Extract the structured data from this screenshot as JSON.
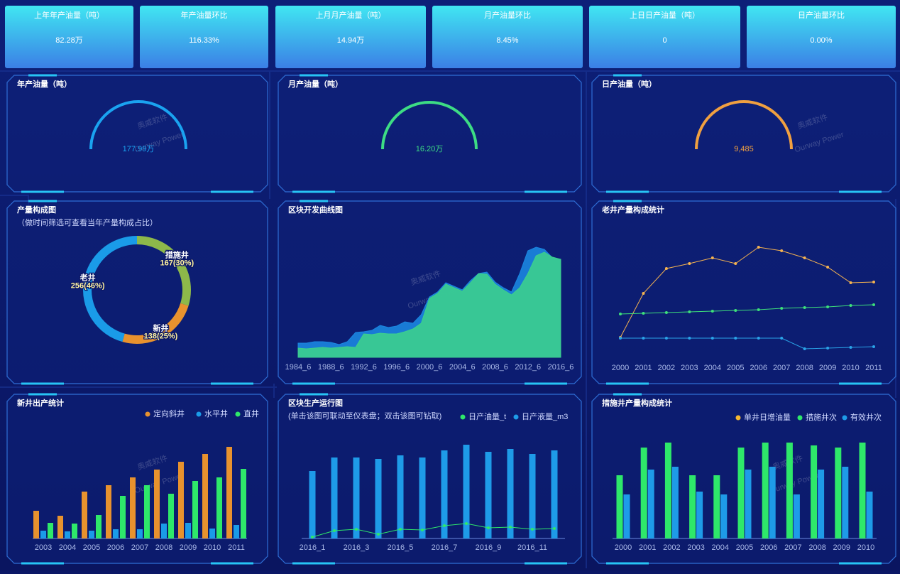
{
  "kpi_cards": [
    {
      "label": "上年年产油量（吨）",
      "value": "82.28万"
    },
    {
      "label": "年产油量环比",
      "value": "116.33%"
    },
    {
      "label": "上月月产油量（吨）",
      "value": "14.94万"
    },
    {
      "label": "月产油量环比",
      "value": "8.45%"
    },
    {
      "label": "上日日产油量（吨）",
      "value": "0"
    },
    {
      "label": "日产油量环比",
      "value": "0.00%"
    }
  ],
  "watermark": {
    "cn": "奥威软件",
    "en": "Ourway Power"
  },
  "chart_data": [
    {
      "type": "gauge",
      "title": "年产油量（吨）",
      "value": 177.99,
      "value_label": "177.99万",
      "color": "#1aa3f0"
    },
    {
      "type": "gauge",
      "title": "月产油量（吨）",
      "value": 16.2,
      "value_label": "16.20万",
      "color": "#3ddc84"
    },
    {
      "type": "gauge",
      "title": "日产油量（吨）",
      "value": 9485,
      "value_label": "9,485",
      "color": "#f0a040"
    },
    {
      "type": "pie",
      "title": "产量构成图",
      "subtitle": "（做时间筛选可查看当年产量构成占比）",
      "categories": [
        "措施井",
        "新井",
        "老井"
      ],
      "values": [
        167,
        138,
        256
      ],
      "value_labels": [
        "167(30%)",
        "138(25%)",
        "256(46%)"
      ],
      "colors": [
        "#8db84a",
        "#e8922e",
        "#1a9be8"
      ]
    },
    {
      "type": "area",
      "title": "区块开发曲线图",
      "categories": [
        "1984_6",
        null,
        null,
        null,
        "1988_6",
        null,
        null,
        null,
        "1992_6",
        null,
        null,
        null,
        "1996_6",
        null,
        null,
        null,
        "2000_6",
        null,
        null,
        null,
        "2004_6",
        null,
        null,
        null,
        "2008_6",
        null,
        null,
        null,
        "2012_6",
        null,
        null,
        null,
        "2016_6"
      ],
      "series": [
        {
          "color": "#1b86e0",
          "values": [
            20,
            20,
            22,
            22,
            21,
            18,
            22,
            35,
            36,
            38,
            45,
            42,
            44,
            50,
            48,
            60,
            85,
            92,
            105,
            100,
            95,
            108,
            118,
            120,
            106,
            98,
            92,
            118,
            150,
            155,
            152,
            140,
            138
          ]
        },
        {
          "color": "#3ccf8e",
          "values": [
            13,
            12,
            13,
            14,
            13,
            14,
            15,
            14,
            33,
            32,
            34,
            33,
            33,
            36,
            40,
            48,
            83,
            90,
            103,
            98,
            93,
            105,
            118,
            117,
            103,
            95,
            88,
            98,
            118,
            143,
            148,
            141,
            138
          ]
        }
      ]
    },
    {
      "type": "line",
      "title": "老井产量构成统计",
      "categories": [
        "2000",
        "2001",
        "2002",
        "2003",
        "2004",
        "2005",
        "2006",
        "2007",
        "2008",
        "2009",
        "2010",
        "2011"
      ],
      "series": [
        {
          "color": "#f5b350",
          "values": [
            45,
            107,
            142,
            149,
            157,
            149,
            172,
            167,
            157,
            144,
            122,
            123
          ]
        },
        {
          "color": "#3de07a",
          "values": [
            78,
            79,
            80,
            81,
            82,
            83,
            84,
            86,
            87,
            88,
            90,
            91
          ]
        },
        {
          "color": "#2aa3e8",
          "values": [
            44,
            44,
            44,
            44,
            44,
            44,
            44,
            44,
            29,
            30,
            31,
            32
          ]
        }
      ]
    },
    {
      "type": "bar",
      "title": "新井出产统计",
      "categories": [
        "2003",
        "2004",
        "2005",
        "2006",
        "2007",
        "2008",
        "2009",
        "2010",
        "2011"
      ],
      "series": [
        {
          "name": "定向斜井",
          "color": "#e8922e",
          "values": [
            39,
            32,
            66,
            75,
            86,
            97,
            108,
            119,
            129
          ]
        },
        {
          "name": "水平井",
          "color": "#1a9be8",
          "values": [
            11,
            10,
            11,
            13,
            13,
            21,
            22,
            14,
            19
          ]
        },
        {
          "name": "直井",
          "color": "#2ee86a",
          "values": [
            22,
            21,
            33,
            60,
            75,
            63,
            81,
            86,
            98
          ]
        }
      ]
    },
    {
      "type": "bar",
      "title": "区块生产运行图",
      "subtitle": "(单击该图可联动至仪表盘；双击该图可钻取)",
      "categories": [
        "2016_1",
        null,
        "2016_3",
        null,
        "2016_5",
        null,
        "2016_7",
        null,
        "2016_9",
        null,
        "2016_11",
        null
      ],
      "series": [
        {
          "name": "日产油量_t",
          "type": "line",
          "color": "#2ee86a",
          "values": [
            2,
            11,
            13,
            6,
            13,
            12,
            18,
            21,
            15,
            16,
            13,
            14
          ]
        },
        {
          "name": "日产液量_m3",
          "color": "#1e9be8",
          "values": [
            95,
            114,
            114,
            112,
            117,
            114,
            124,
            132,
            122,
            126,
            119,
            124
          ]
        }
      ]
    },
    {
      "type": "bar",
      "title": "措施井产量构成统计",
      "categories": [
        "2000",
        "2001",
        "2002",
        "2003",
        "2004",
        "2005",
        "2006",
        "2007",
        "2008",
        "2009",
        "2010"
      ],
      "series": [
        {
          "name": "单井日增油量",
          "type": "line",
          "color": "#f5b731",
          "values": [
            null,
            null,
            null,
            null,
            null,
            null,
            null,
            null,
            null,
            null,
            null
          ]
        },
        {
          "name": "措施井次",
          "color": "#2ee86a",
          "values": [
            89,
            128,
            135,
            89,
            89,
            128,
            135,
            135,
            131,
            128,
            135
          ]
        },
        {
          "name": "有效井次",
          "color": "#1e9be8",
          "values": [
            62,
            97,
            101,
            66,
            62,
            97,
            101,
            62,
            97,
            101,
            66
          ]
        }
      ]
    }
  ]
}
